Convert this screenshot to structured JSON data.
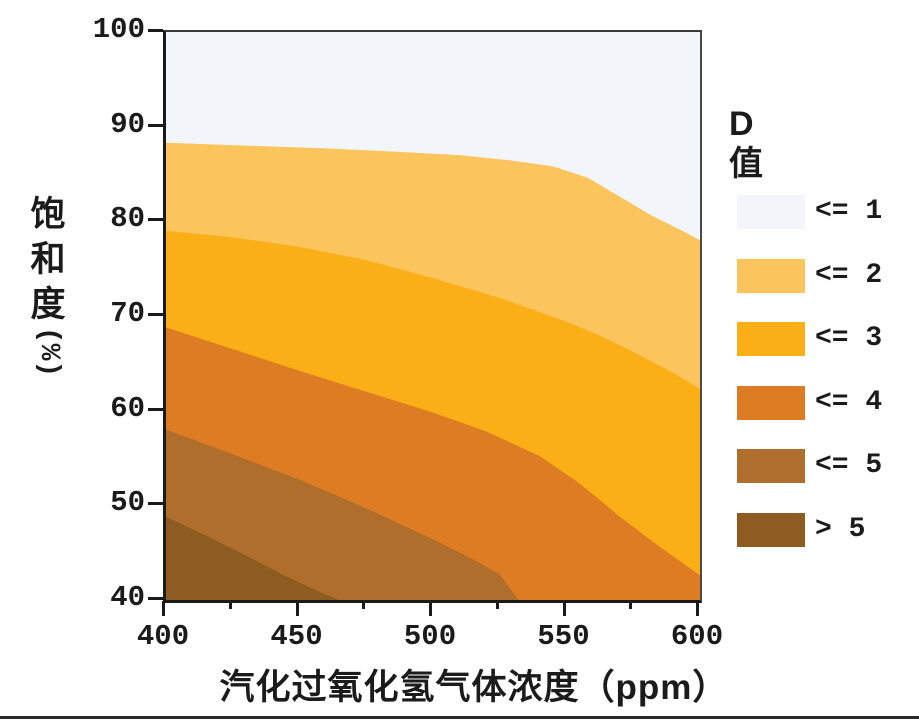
{
  "chart_data": {
    "type": "heatmap",
    "subtype": "filled_contour",
    "x_axis": {
      "label": "汽化过氧化氢气体浓度（ppm）",
      "min": 400,
      "max": 600,
      "major_ticks": [
        400,
        450,
        500,
        550,
        600
      ],
      "minor_ticks": [
        425,
        475,
        525,
        575
      ]
    },
    "y_axis": {
      "label": "饱和度(%)",
      "label_stack": [
        "饱",
        "和",
        "度"
      ],
      "label_unit": "(%)",
      "min": 40,
      "max": 100,
      "major_ticks": [
        100,
        90,
        80,
        70,
        60,
        50,
        40
      ]
    },
    "legend": {
      "title": "D值",
      "position": "right",
      "entries": [
        {
          "label": "<= 1",
          "color": "#F2F6FB"
        },
        {
          "label": "<= 2",
          "color": "#FBC45C"
        },
        {
          "label": "<= 3",
          "color": "#FBAF17"
        },
        {
          "label": "<= 4",
          "color": "#DD7C22"
        },
        {
          "label": "<= 5",
          "color": "#B06E2C"
        },
        {
          "label": "> 5",
          "color": "#8E5B20"
        }
      ]
    },
    "grid": false,
    "contour_levels": [
      {
        "level": 1,
        "boundary_between": [
          "<= 1",
          "<= 2"
        ],
        "points": [
          [
            400,
            88.3
          ],
          [
            430,
            88.0
          ],
          [
            460,
            87.7
          ],
          [
            490,
            87.3
          ],
          [
            510,
            87.0
          ],
          [
            530,
            86.4
          ],
          [
            545,
            85.8
          ],
          [
            558,
            84.6
          ],
          [
            570,
            82.6
          ],
          [
            582,
            80.6
          ],
          [
            592,
            79.2
          ],
          [
            600,
            78.0
          ]
        ]
      },
      {
        "level": 2,
        "boundary_between": [
          "<= 2",
          "<= 3"
        ],
        "points": [
          [
            400,
            79.0
          ],
          [
            425,
            78.3
          ],
          [
            450,
            77.3
          ],
          [
            475,
            75.9
          ],
          [
            500,
            74.0
          ],
          [
            525,
            71.9
          ],
          [
            550,
            69.4
          ],
          [
            562,
            68.0
          ],
          [
            575,
            66.2
          ],
          [
            588,
            64.3
          ],
          [
            600,
            62.3
          ]
        ]
      },
      {
        "level": 3,
        "boundary_between": [
          "<= 3",
          "<= 4"
        ],
        "points": [
          [
            400,
            68.8
          ],
          [
            425,
            66.5
          ],
          [
            450,
            64.2
          ],
          [
            475,
            62.0
          ],
          [
            500,
            59.8
          ],
          [
            520,
            57.8
          ],
          [
            540,
            55.2
          ],
          [
            555,
            52.3
          ],
          [
            570,
            48.8
          ],
          [
            585,
            45.6
          ],
          [
            600,
            42.6
          ]
        ]
      },
      {
        "level": 4,
        "boundary_between": [
          "<= 4",
          "<= 5"
        ],
        "points": [
          [
            400,
            58.0
          ],
          [
            425,
            55.4
          ],
          [
            450,
            52.7
          ],
          [
            475,
            49.7
          ],
          [
            500,
            46.4
          ],
          [
            515,
            44.3
          ],
          [
            525,
            42.7
          ],
          [
            532,
            40.0
          ]
        ]
      },
      {
        "level": 5,
        "boundary_between": [
          "<= 5",
          "> 5"
        ],
        "points": [
          [
            400,
            48.8
          ],
          [
            415,
            46.8
          ],
          [
            430,
            44.7
          ],
          [
            445,
            42.5
          ],
          [
            458,
            40.8
          ],
          [
            465,
            40.0
          ]
        ]
      }
    ]
  }
}
